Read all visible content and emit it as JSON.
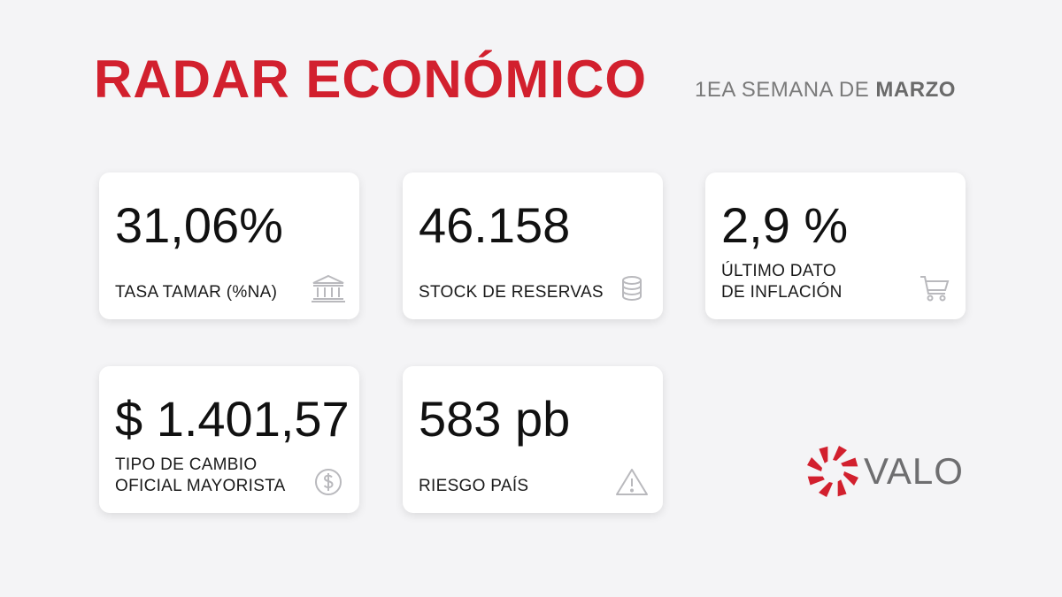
{
  "colors": {
    "accent": "#d2202e",
    "background": "#f4f4f6",
    "card": "#ffffff",
    "icon": "#b9b9bd"
  },
  "header": {
    "title": "RADAR ECONÓMICO",
    "week_prefix": "1EA SEMANA DE ",
    "week_month": "MARZO"
  },
  "cards": [
    {
      "value": "31,06%",
      "label_line1": "TASA TAMAR (%NA)",
      "label_line2": "",
      "icon": "bank-icon"
    },
    {
      "value": "46.158",
      "label_line1": "STOCK DE RESERVAS",
      "label_line2": "",
      "icon": "coins-stack-icon"
    },
    {
      "value": "2,9 %",
      "label_line1": "ÚLTIMO DATO",
      "label_line2": "DE INFLACIÓN",
      "icon": "shopping-cart-icon"
    },
    {
      "value": "$ 1.401,57",
      "label_line1": "TIPO DE CAMBIO",
      "label_line2": "OFICIAL MAYORISTA",
      "icon": "dollar-coin-icon"
    },
    {
      "value": "583 pb",
      "label_line1": "RIESGO PAÍS",
      "label_line2": "",
      "icon": "warning-icon"
    }
  ],
  "brand": {
    "name": "VALO",
    "logo_icon": "valo-spiral-logo-icon"
  }
}
